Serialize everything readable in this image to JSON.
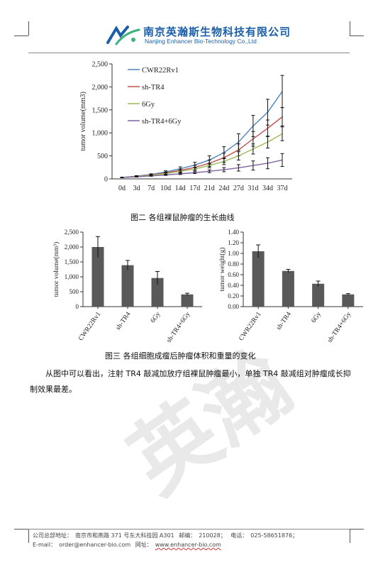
{
  "header": {
    "company_cn": "南京英瀚斯生物科技有限公司",
    "company_en": "Nanjing Enhancer Bio-Technology Co.,Ltd",
    "logo_color": "#1b5faa",
    "logo_accent": "#3bb37a"
  },
  "figure2": {
    "caption": "图二  各组裸鼠肿瘤的生长曲线",
    "chart_data": {
      "type": "line",
      "ylabel": "tumor volume(mm3)",
      "xlabel": "",
      "x": [
        "0d",
        "3d",
        "7d",
        "10d",
        "14d",
        "17d",
        "21d",
        "24d",
        "27d",
        "31d",
        "34d",
        "37d"
      ],
      "ylim": [
        0,
        2500
      ],
      "yticks": [
        "0",
        "500",
        "1,000",
        "1,500",
        "2,000",
        "2,500"
      ],
      "legend_position": "top-left",
      "grid": false,
      "series": [
        {
          "name": "CWR22Rv1",
          "color": "#4f81bd",
          "values": [
            30,
            60,
            95,
            150,
            220,
            300,
            410,
            570,
            800,
            1150,
            1450,
            1900
          ],
          "errors": [
            5,
            10,
            15,
            25,
            40,
            60,
            90,
            130,
            180,
            230,
            280,
            350
          ]
        },
        {
          "name": "sh-TR4",
          "color": "#c0504d",
          "values": [
            30,
            55,
            85,
            130,
            185,
            250,
            340,
            460,
            630,
            870,
            1100,
            1350
          ],
          "errors": [
            5,
            8,
            12,
            20,
            30,
            45,
            70,
            100,
            130,
            160,
            180,
            200
          ]
        },
        {
          "name": "6Gy",
          "color": "#9bbb59",
          "values": [
            30,
            50,
            80,
            115,
            165,
            215,
            290,
            380,
            500,
            650,
            800,
            980
          ],
          "errors": [
            5,
            8,
            10,
            15,
            25,
            35,
            50,
            70,
            90,
            110,
            130,
            150
          ]
        },
        {
          "name": "sh-TR4+6Gy",
          "color": "#8064a2",
          "values": [
            30,
            45,
            65,
            85,
            110,
            135,
            165,
            200,
            240,
            290,
            340,
            410
          ],
          "errors": [
            5,
            6,
            8,
            10,
            15,
            20,
            30,
            45,
            70,
            100,
            120,
            140
          ]
        }
      ]
    }
  },
  "figure3": {
    "caption": "图三  各组细胞成瘤后肿瘤体积和重量的变化",
    "charts": [
      {
        "type": "bar",
        "ylabel": "tumor volume(mm³)",
        "categories": [
          "CWR22Rv1",
          "sh-TR4",
          "6Gy",
          "sh-TR4+6Gy"
        ],
        "values": [
          2000,
          1390,
          960,
          410
        ],
        "errors": [
          350,
          160,
          220,
          40
        ],
        "ylim": [
          0,
          2500
        ],
        "yticks": [
          "0",
          "500",
          "1,000",
          "1,500",
          "2,000",
          "2,500"
        ],
        "bar_color": "#595959"
      },
      {
        "type": "bar",
        "ylabel": "tumor weight(g)",
        "categories": [
          "CWR22Rv1",
          "sh-TR4",
          "6Gy",
          "sh-TR4+6Gy"
        ],
        "values": [
          1.04,
          0.67,
          0.43,
          0.23
        ],
        "errors": [
          0.12,
          0.03,
          0.05,
          0.015
        ],
        "ylim": [
          0,
          1.4
        ],
        "yticks": [
          "0.00",
          "0.20",
          "0.40",
          "0.60",
          "0.80",
          "1.00",
          "1.20",
          "1.40"
        ],
        "bar_color": "#595959"
      }
    ]
  },
  "body_text": "从图中可以看出，注射 TR4 敲减加放疗组裸鼠肿瘤最小，单独 TR4 敲减组对肿瘤成长抑制效果最差。",
  "footer": {
    "address_label": "公司总部地址：",
    "address": "南京市和燕路 371 号东大科技园 A301",
    "postcode_label": "邮编：",
    "postcode": "210028；",
    "phone_label": "电话：",
    "phone": "025-58651876；",
    "email_label": "E-mail：",
    "email": "order@enhancer-bio.com",
    "web_label": "网址：",
    "website": "www.enhancer-bio.com"
  },
  "watermark": "英瀚"
}
